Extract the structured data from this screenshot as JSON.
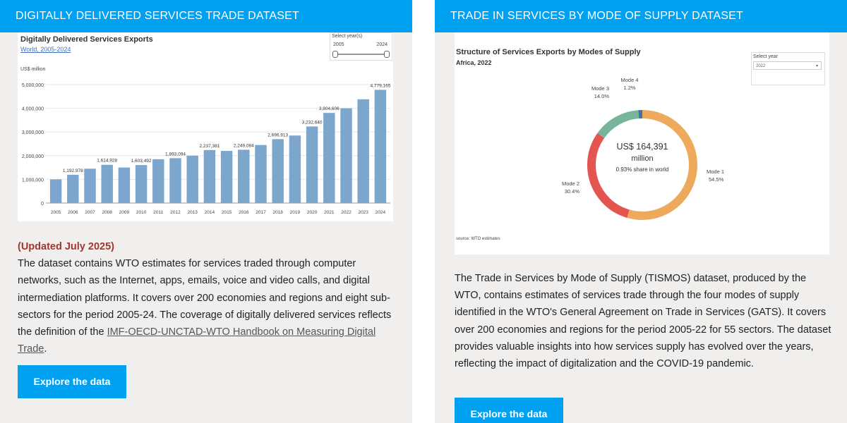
{
  "left": {
    "header": "DIGITALLY DELIVERED SERVICES TRADE DATASET",
    "chart_title": "Digitally Delivered Services Exports",
    "chart_subtitle": "World, 2005-2024",
    "unit": "US$ million",
    "slider": {
      "label": "Select year(s)",
      "from": "2005",
      "to": "2024"
    },
    "updated": "(Updated July 2025)",
    "description": "The dataset contains WTO estimates for services traded through computer networks, such as the Internet, apps, emails, voice and video calls, and digital intermediation platforms. It covers over 200 economies and regions and eight sub-sectors for the period 2005-24. The coverage of digitally delivered services reflects the definition of the ",
    "link": "IMF-OECD-UNCTAD-WTO Handbook on Measuring Digital Trade",
    "period": ".",
    "button": "Explore the data"
  },
  "right": {
    "header": "TRADE IN SERVICES BY MODE OF SUPPLY DATASET",
    "chart_title": "Structure of Services Exports by Modes of Supply",
    "chart_subtitle": "Africa, 2022",
    "select_label": "Select year",
    "select_value": "2022",
    "center_value": "US$ 164,391",
    "center_unit": "million",
    "center_share": "0.93% share in world",
    "source": "source: WTO estimates",
    "description": "The Trade in Services by Mode of Supply (TISMOS) dataset, produced by the WTO, contains estimates of services trade through the four modes of supply identified in the WTO's General Agreement on Trade in Services (GATS). It covers over 200 economies and regions for the period 2005-22 for 55 sectors. The dataset provides valuable insights into how services supply has evolved over the years, reflecting the impact of digitalization and the COVID-19 pandemic.",
    "button": "Explore the data"
  },
  "chart_data": [
    {
      "type": "bar",
      "title": "Digitally Delivered Services Exports",
      "subtitle": "World, 2005-2024",
      "ylabel": "US$ million",
      "ylim": [
        0,
        5000000
      ],
      "yticks": [
        "0",
        "1,000,000",
        "2,000,000",
        "3,000,000",
        "4,000,000",
        "5,000,000"
      ],
      "categories": [
        "2005",
        "2006",
        "2007",
        "2008",
        "2009",
        "2010",
        "2011",
        "2012",
        "2013",
        "2014",
        "2015",
        "2016",
        "2017",
        "2018",
        "2019",
        "2020",
        "2021",
        "2022",
        "2023",
        "2024"
      ],
      "values": [
        1000000,
        1192978,
        1450000,
        1614928,
        1500000,
        1603492,
        1850000,
        1893094,
        2000000,
        2237381,
        2200000,
        2249084,
        2450000,
        2696913,
        2850000,
        3232640,
        3804606,
        4000000,
        4380000,
        4779165
      ],
      "labels": [
        "",
        "1,192,978",
        "",
        "1,614,928",
        "",
        "1,603,492",
        "",
        "1,893,094",
        "",
        "2,237,381",
        "",
        "2,249,084",
        "",
        "2,696,913",
        "",
        "3,232,640",
        "3,804,606",
        "",
        "",
        "4,779,165"
      ],
      "color": "#7ca6cc",
      "grid": true
    },
    {
      "type": "pie",
      "title": "Structure of Services Exports by Modes of Supply",
      "subtitle": "Africa, 2022",
      "slices": [
        {
          "name": "Mode 1",
          "value": 54.5,
          "label": "54.5%",
          "color": "#eda95c"
        },
        {
          "name": "Mode 2",
          "value": 30.4,
          "label": "30.4%",
          "color": "#e4554f"
        },
        {
          "name": "Mode 3",
          "value": 14.0,
          "label": "14.0%",
          "color": "#78b49c"
        },
        {
          "name": "Mode 4",
          "value": 1.2,
          "label": "1.2%",
          "color": "#3e74a8"
        }
      ]
    }
  ]
}
